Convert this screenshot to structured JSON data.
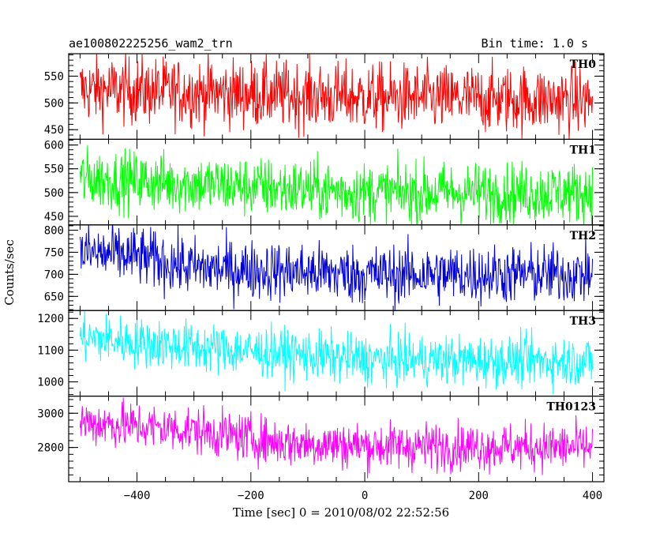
{
  "chart_data": {
    "type": "line",
    "title": "ae100802225256_wam2_trn",
    "subtitle": "Bin time: 1.0 s",
    "xlabel": "Time [sec] 0 = 2010/08/02 22:52:56",
    "ylabel": "Counts/sec",
    "xlim": [
      -520,
      420
    ],
    "x_ticks": [
      -400,
      -200,
      0,
      200,
      400
    ],
    "x_range": [
      -500,
      400
    ],
    "bin_time": 1.0,
    "grid": false,
    "panels": [
      {
        "name": "TH0",
        "color": "#ff0000",
        "ylim": [
          432,
          592
        ],
        "yticks": [
          450,
          500,
          550
        ],
        "trend": [
          [
            -500,
            525
          ],
          [
            -300,
            520
          ],
          [
            0,
            510
          ],
          [
            400,
            505
          ]
        ],
        "noise": 32
      },
      {
        "name": "TH1",
        "color": "#00ff00",
        "ylim": [
          432,
          612
        ],
        "yticks": [
          450,
          500,
          550,
          600
        ],
        "trend": [
          [
            -500,
            530
          ],
          [
            -300,
            518
          ],
          [
            0,
            500
          ],
          [
            400,
            500
          ]
        ],
        "noise": 32
      },
      {
        "name": "TH2",
        "color": "#0000dd",
        "ylim": [
          618,
          812
        ],
        "yticks": [
          650,
          700,
          750,
          800
        ],
        "trend": [
          [
            -500,
            750
          ],
          [
            -400,
            740
          ],
          [
            -300,
            715
          ],
          [
            0,
            700
          ],
          [
            400,
            700
          ]
        ],
        "noise": 34
      },
      {
        "name": "TH3",
        "color": "#00ffff",
        "ylim": [
          955,
          1225
        ],
        "yticks": [
          1000,
          1100,
          1200
        ],
        "trend": [
          [
            -500,
            1140
          ],
          [
            -300,
            1110
          ],
          [
            0,
            1070
          ],
          [
            400,
            1065
          ]
        ],
        "noise": 40
      },
      {
        "name": "TH0123",
        "color": "#ff00ff",
        "ylim": [
          2600,
          3100
        ],
        "yticks": [
          2800,
          3000
        ],
        "trend": [
          [
            -500,
            2950
          ],
          [
            -300,
            2900
          ],
          [
            -150,
            2830
          ],
          [
            0,
            2810
          ],
          [
            400,
            2800
          ]
        ],
        "noise": 70
      }
    ]
  }
}
